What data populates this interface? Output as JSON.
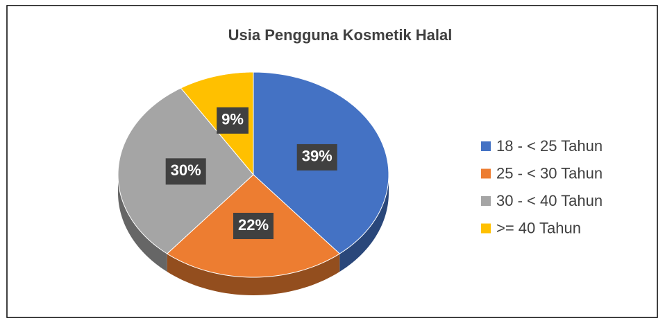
{
  "chart_data": {
    "type": "pie",
    "title": "Usia Pengguna Kosmetik Halal",
    "categories": [
      "18 - < 25 Tahun",
      "25 - < 30 Tahun",
      "30 - < 40 Tahun",
      ">= 40 Tahun"
    ],
    "values": [
      39,
      22,
      30,
      9
    ],
    "value_labels": [
      "39%",
      "22%",
      "30%",
      "9%"
    ],
    "colors": [
      "#4472c4",
      "#ed7d31",
      "#a5a5a5",
      "#ffc000"
    ],
    "legend": "right"
  }
}
